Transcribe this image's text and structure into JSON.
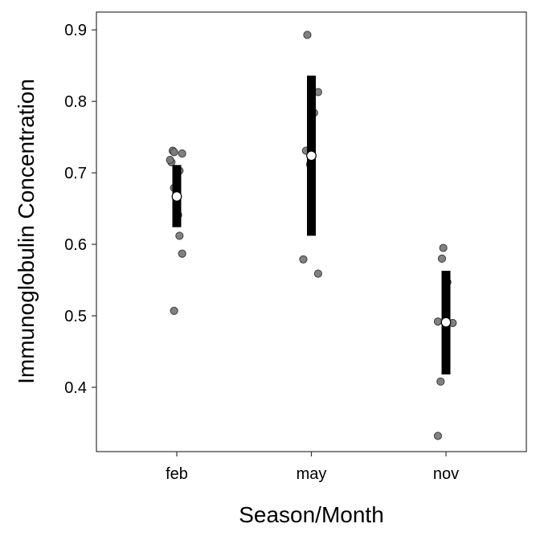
{
  "chart_data": {
    "type": "scatter",
    "xlabel": "Season/Month",
    "ylabel": "Immunoglobulin Concentration",
    "categories": [
      "feb",
      "may",
      "nov"
    ],
    "ylim": [
      0.31,
      0.925
    ],
    "y_ticks": [
      0.4,
      0.5,
      0.6,
      0.7,
      0.8,
      0.9
    ],
    "y_tick_labels": [
      "0.4",
      "0.5",
      "0.6",
      "0.7",
      "0.8",
      "0.9"
    ],
    "grid": false,
    "legend": "none",
    "points": [
      {
        "category": "feb",
        "jitter": -0.03,
        "value": 0.731
      },
      {
        "category": "feb",
        "jitter": -0.02,
        "value": 0.729
      },
      {
        "category": "feb",
        "jitter": -0.04,
        "value": 0.715
      },
      {
        "category": "feb",
        "jitter": -0.05,
        "value": 0.718
      },
      {
        "category": "feb",
        "jitter": 0.04,
        "value": 0.727
      },
      {
        "category": "feb",
        "jitter": 0.02,
        "value": 0.703
      },
      {
        "category": "feb",
        "jitter": -0.02,
        "value": 0.679
      },
      {
        "category": "feb",
        "jitter": 0.01,
        "value": 0.641
      },
      {
        "category": "feb",
        "jitter": 0.02,
        "value": 0.612
      },
      {
        "category": "feb",
        "jitter": 0.04,
        "value": 0.587
      },
      {
        "category": "feb",
        "jitter": -0.02,
        "value": 0.507
      },
      {
        "category": "may",
        "jitter": -0.03,
        "value": 0.893
      },
      {
        "category": "may",
        "jitter": 0.05,
        "value": 0.813
      },
      {
        "category": "may",
        "jitter": 0.02,
        "value": 0.784
      },
      {
        "category": "may",
        "jitter": -0.04,
        "value": 0.731
      },
      {
        "category": "may",
        "jitter": -0.01,
        "value": 0.712
      },
      {
        "category": "may",
        "jitter": -0.06,
        "value": 0.579
      },
      {
        "category": "may",
        "jitter": 0.05,
        "value": 0.559
      },
      {
        "category": "nov",
        "jitter": -0.03,
        "value": 0.58
      },
      {
        "category": "nov",
        "jitter": -0.02,
        "value": 0.595
      },
      {
        "category": "nov",
        "jitter": 0.01,
        "value": 0.547
      },
      {
        "category": "nov",
        "jitter": -0.06,
        "value": 0.492
      },
      {
        "category": "nov",
        "jitter": 0.05,
        "value": 0.49
      },
      {
        "category": "nov",
        "jitter": -0.04,
        "value": 0.408
      },
      {
        "category": "nov",
        "jitter": -0.06,
        "value": 0.332
      }
    ],
    "summary": [
      {
        "category": "feb",
        "mean": 0.667,
        "lower": 0.624,
        "upper": 0.711
      },
      {
        "category": "may",
        "mean": 0.724,
        "lower": 0.612,
        "upper": 0.836
      },
      {
        "category": "nov",
        "mean": 0.491,
        "lower": 0.418,
        "upper": 0.563
      }
    ],
    "colors": {
      "point_fill": "#7a7a7a",
      "point_stroke": "#333333",
      "bar": "#000000",
      "mean_fill": "#ffffff",
      "mean_stroke": "#000000"
    }
  }
}
